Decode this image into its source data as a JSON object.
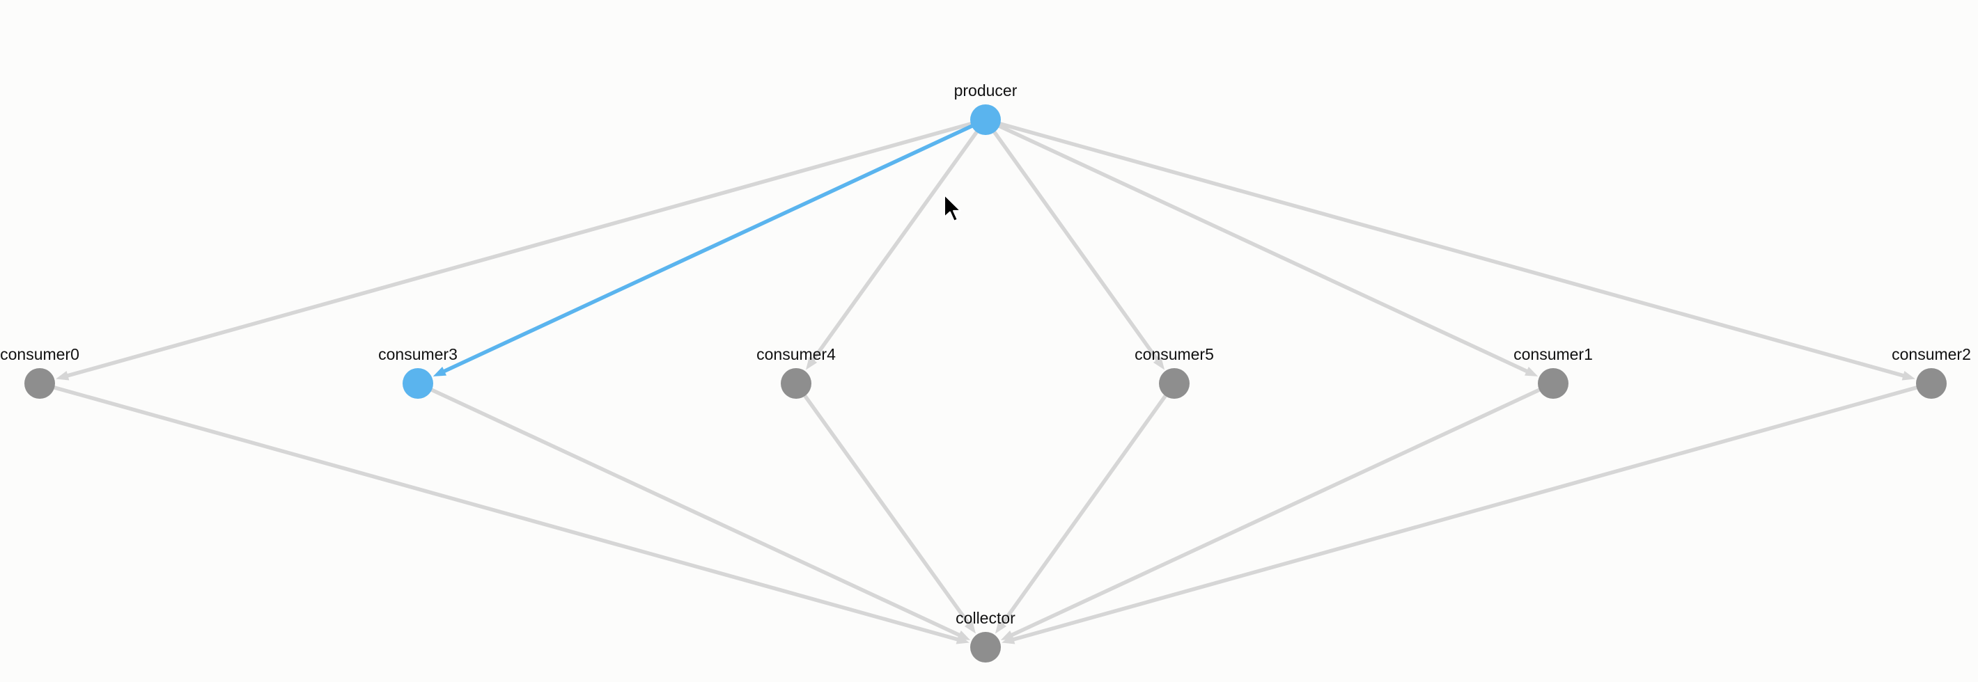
{
  "graph": {
    "colors": {
      "node_default": "#8e8e8e",
      "node_highlight": "#5ab4ee",
      "edge_default": "#d6d6d6",
      "edge_highlight": "#5ab4ee"
    },
    "nodes": [
      {
        "id": "producer",
        "label": "producer",
        "highlighted": true
      },
      {
        "id": "consumer0",
        "label": "consumer0",
        "highlighted": false
      },
      {
        "id": "consumer3",
        "label": "consumer3",
        "highlighted": true
      },
      {
        "id": "consumer4",
        "label": "consumer4",
        "highlighted": false
      },
      {
        "id": "consumer5",
        "label": "consumer5",
        "highlighted": false
      },
      {
        "id": "consumer1",
        "label": "consumer1",
        "highlighted": false
      },
      {
        "id": "consumer2",
        "label": "consumer2",
        "highlighted": false
      },
      {
        "id": "collector",
        "label": "collector",
        "highlighted": false
      }
    ],
    "edges": [
      {
        "from": "producer",
        "to": "consumer0",
        "highlighted": false
      },
      {
        "from": "producer",
        "to": "consumer3",
        "highlighted": true
      },
      {
        "from": "producer",
        "to": "consumer4",
        "highlighted": false
      },
      {
        "from": "producer",
        "to": "consumer5",
        "highlighted": false
      },
      {
        "from": "producer",
        "to": "consumer1",
        "highlighted": false
      },
      {
        "from": "producer",
        "to": "consumer2",
        "highlighted": false
      },
      {
        "from": "consumer0",
        "to": "collector",
        "highlighted": false
      },
      {
        "from": "consumer3",
        "to": "collector",
        "highlighted": false
      },
      {
        "from": "consumer4",
        "to": "collector",
        "highlighted": false
      },
      {
        "from": "consumer5",
        "to": "collector",
        "highlighted": false
      },
      {
        "from": "consumer1",
        "to": "collector",
        "highlighted": false
      },
      {
        "from": "consumer2",
        "to": "collector",
        "highlighted": false
      }
    ]
  }
}
